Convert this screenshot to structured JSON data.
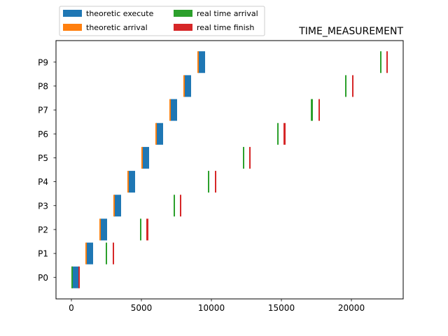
{
  "chart_data": {
    "type": "bar",
    "orientation": "horizontal",
    "title": "TIME_MEASUREMENT",
    "xlabel": "",
    "ylabel": "",
    "xlim": [
      -1100,
      23700
    ],
    "xticks": [
      0,
      5000,
      10000,
      15000,
      20000
    ],
    "categories": [
      "P0",
      "P1",
      "P2",
      "P3",
      "P4",
      "P5",
      "P6",
      "P7",
      "P8",
      "P9"
    ],
    "grid": false,
    "legend_position": "top-left (outside axes)",
    "legend_columns": 2,
    "series": [
      {
        "name": "theoretic execute",
        "color": "#1f77b4",
        "kind": "span",
        "start": [
          50,
          1050,
          2050,
          3050,
          4050,
          5050,
          6050,
          7050,
          8050,
          9050
        ],
        "end": [
          550,
          1550,
          2550,
          3550,
          4550,
          5550,
          6550,
          7550,
          8550,
          9550
        ]
      },
      {
        "name": "theoretic arrival",
        "color": "#ff7f0e",
        "kind": "span",
        "start": [
          0,
          1000,
          2000,
          3000,
          4000,
          5000,
          6000,
          7000,
          8000,
          9000
        ],
        "end": [
          100,
          1100,
          2100,
          3100,
          4100,
          5100,
          6100,
          7100,
          8100,
          9100
        ]
      },
      {
        "name": "real time arrival",
        "color": "#2ca02c",
        "kind": "span",
        "start": [
          0,
          2450,
          4900,
          7300,
          9750,
          12250,
          14700,
          17100,
          19550,
          22050
        ],
        "end": [
          100,
          2550,
          5000,
          7400,
          9850,
          12350,
          14800,
          17250,
          19650,
          22150
        ]
      },
      {
        "name": "real time finish",
        "color": "#d62728",
        "kind": "span",
        "start": [
          500,
          2950,
          5350,
          7750,
          10250,
          12700,
          15150,
          17650,
          20050,
          22500
        ],
        "end": [
          600,
          3050,
          5500,
          7850,
          10350,
          12800,
          15300,
          17750,
          20150,
          22600
        ]
      }
    ]
  }
}
